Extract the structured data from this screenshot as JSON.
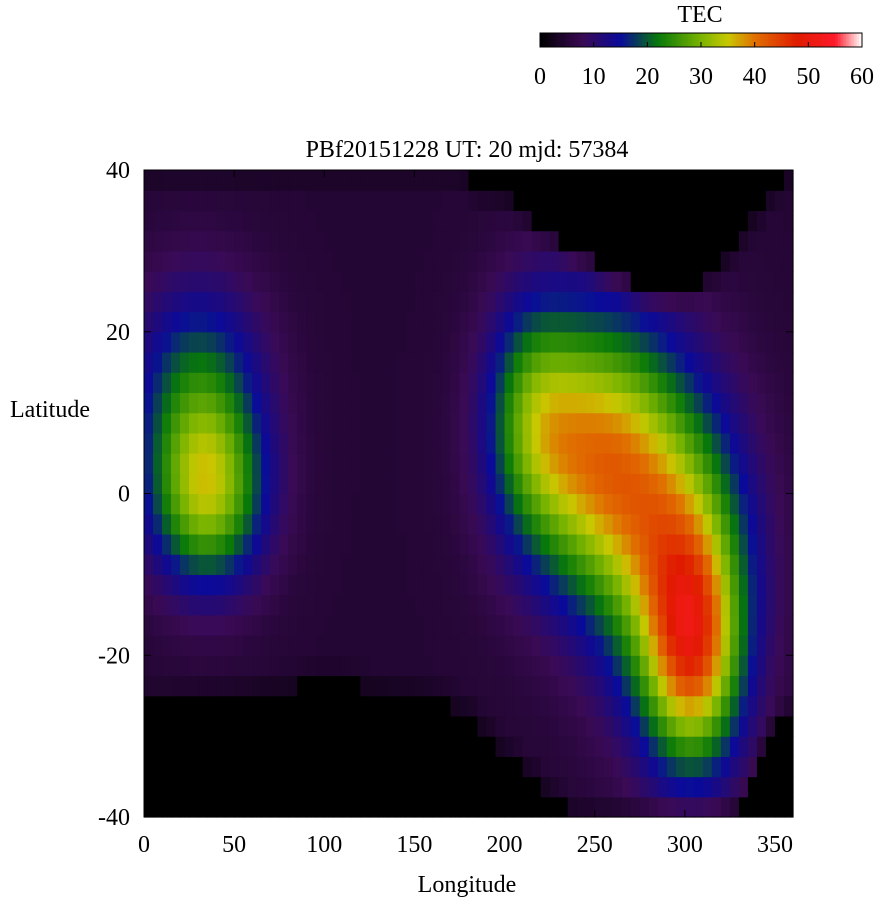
{
  "chart_data": {
    "type": "heatmap",
    "title": "PBf20151228  UT: 20  mjd: 57384",
    "xlabel": "Longitude",
    "ylabel": "Latitude",
    "xlim": [
      0,
      360
    ],
    "ylim": [
      -40,
      40
    ],
    "x_ticks": [
      0,
      50,
      100,
      150,
      200,
      250,
      300,
      350
    ],
    "y_ticks": [
      -40,
      -20,
      0,
      20,
      40
    ],
    "grid": false,
    "colorbar": {
      "title": "TEC",
      "range": [
        0,
        60
      ],
      "ticks": [
        0,
        10,
        20,
        30,
        40,
        50,
        60
      ],
      "placement": "top-right",
      "stops": [
        {
          "value": 0,
          "color": "#000000"
        },
        {
          "value": 8,
          "color": "#3a0a55"
        },
        {
          "value": 15,
          "color": "#0a0a9a"
        },
        {
          "value": 22,
          "color": "#08780a"
        },
        {
          "value": 30,
          "color": "#7ab400"
        },
        {
          "value": 35,
          "color": "#c8c800"
        },
        {
          "value": 40,
          "color": "#e07000"
        },
        {
          "value": 48,
          "color": "#e01a00"
        },
        {
          "value": 55,
          "color": "#ff1a2a"
        },
        {
          "value": 60,
          "color": "#ffffff"
        }
      ]
    },
    "grid_spec": {
      "lon_start": 0,
      "lon_end": 360,
      "lon_step": 5,
      "lat_start": -40,
      "lat_end": 40,
      "lat_step": 2.5
    },
    "features": {
      "background_tec": 5,
      "south_boundary": [
        [
          0,
          -26
        ],
        [
          50,
          -25
        ],
        [
          80,
          -24
        ],
        [
          100,
          -23
        ],
        [
          130,
          -24
        ],
        [
          160,
          -25
        ],
        [
          180,
          -27
        ],
        [
          200,
          -32
        ],
        [
          220,
          -36
        ],
        [
          240,
          -40
        ],
        [
          320,
          -40
        ],
        [
          335,
          -38
        ],
        [
          345,
          -30
        ],
        [
          360,
          -27
        ]
      ],
      "north_boundary": [
        [
          0,
          40
        ],
        [
          175,
          40
        ],
        [
          185,
          38
        ],
        [
          200,
          37
        ],
        [
          220,
          33
        ],
        [
          240,
          30
        ],
        [
          260,
          27
        ],
        [
          280,
          25
        ],
        [
          300,
          25
        ],
        [
          320,
          28
        ],
        [
          335,
          33
        ],
        [
          350,
          38
        ],
        [
          360,
          40
        ]
      ],
      "blobs": [
        {
          "lon": 35,
          "lat": 0,
          "slon": 22,
          "slat": 8,
          "peak": 26
        },
        {
          "lon": 30,
          "lat": 14,
          "slon": 25,
          "slat": 9,
          "peak": 14
        },
        {
          "lon": 250,
          "lat": 5,
          "slon": 30,
          "slat": 12,
          "peak": 30
        },
        {
          "lon": 295,
          "lat": -8,
          "slon": 28,
          "slat": 14,
          "peak": 26
        },
        {
          "lon": 305,
          "lat": -20,
          "slon": 18,
          "slat": 10,
          "peak": 26
        },
        {
          "lon": 215,
          "lat": 10,
          "slon": 18,
          "slat": 10,
          "peak": 14
        }
      ]
    }
  }
}
